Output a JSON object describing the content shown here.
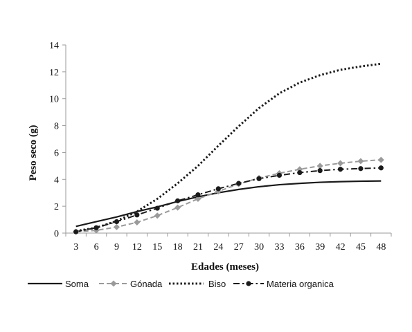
{
  "chart_data": {
    "type": "line",
    "title": "",
    "xlabel": "Edades (meses)",
    "ylabel": "Peso seco (g)",
    "ylim": [
      0,
      14
    ],
    "yticks": [
      0,
      2,
      4,
      6,
      8,
      10,
      12,
      14
    ],
    "x": [
      3,
      6,
      9,
      12,
      15,
      18,
      21,
      24,
      27,
      30,
      33,
      36,
      39,
      42,
      45,
      48
    ],
    "grid": false,
    "legend_position": "bottom",
    "series": [
      {
        "name": "Soma",
        "style": "solid",
        "marker": "none",
        "color": "#1a1a1a",
        "values": [
          0.5,
          0.85,
          1.2,
          1.6,
          1.95,
          2.35,
          2.7,
          3.0,
          3.25,
          3.45,
          3.6,
          3.7,
          3.78,
          3.83,
          3.86,
          3.88
        ]
      },
      {
        "name": "Gónada",
        "style": "dashed",
        "marker": "diamond",
        "color": "#9a9a9a",
        "values": [
          0.1,
          0.2,
          0.45,
          0.8,
          1.3,
          1.9,
          2.55,
          3.1,
          3.65,
          4.1,
          4.45,
          4.75,
          5.0,
          5.2,
          5.35,
          5.45
        ]
      },
      {
        "name": "Biso",
        "style": "dotted",
        "marker": "none",
        "color": "#1a1a1a",
        "values": [
          0.15,
          0.4,
          0.9,
          1.6,
          2.55,
          3.7,
          5.0,
          6.5,
          7.95,
          9.3,
          10.4,
          11.2,
          11.75,
          12.15,
          12.4,
          12.6
        ]
      },
      {
        "name": "Materia organica",
        "style": "dashdot",
        "marker": "circle",
        "color": "#1a1a1a",
        "values": [
          0.1,
          0.4,
          0.85,
          1.35,
          1.85,
          2.4,
          2.85,
          3.3,
          3.7,
          4.05,
          4.3,
          4.5,
          4.65,
          4.75,
          4.8,
          4.85
        ]
      }
    ]
  }
}
